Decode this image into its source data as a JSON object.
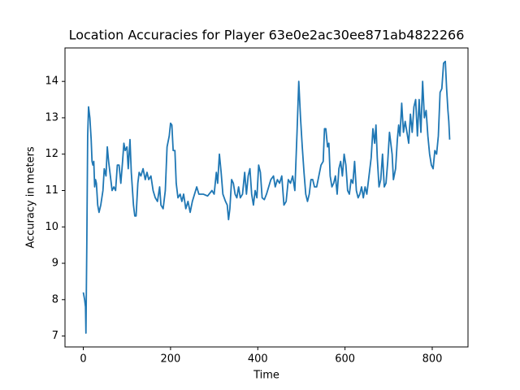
{
  "chart_data": {
    "type": "line",
    "title": "Location Accuracies for Player 63e0e2ac30ee871ab4822266",
    "x_label": "Time",
    "y_label": "Accuracy in meters",
    "xlim": [
      -42,
      882
    ],
    "ylim": [
      6.7,
      14.92
    ],
    "xticks": [
      0,
      200,
      400,
      600,
      800
    ],
    "yticks": [
      7,
      8,
      9,
      10,
      11,
      12,
      13,
      14
    ],
    "grid": false,
    "series": [
      {
        "color": "#1f77b4",
        "x": [
          0,
          3,
          5,
          6,
          8,
          10,
          12,
          15,
          18,
          20,
          22,
          24,
          26,
          28,
          30,
          33,
          36,
          40,
          45,
          48,
          52,
          55,
          58,
          62,
          66,
          70,
          74,
          78,
          82,
          86,
          90,
          93,
          96,
          100,
          103,
          107,
          110,
          115,
          118,
          121,
          125,
          128,
          132,
          137,
          142,
          146,
          150,
          155,
          160,
          165,
          170,
          175,
          178,
          183,
          188,
          192,
          197,
          200,
          203,
          206,
          210,
          213,
          217,
          222,
          226,
          230,
          235,
          240,
          245,
          250,
          255,
          260,
          265,
          275,
          285,
          295,
          300,
          305,
          308,
          312,
          316,
          320,
          326,
          330,
          333,
          336,
          340,
          344,
          348,
          352,
          356,
          360,
          365,
          370,
          374,
          378,
          382,
          386,
          390,
          394,
          398,
          402,
          406,
          410,
          415,
          420,
          425,
          430,
          436,
          440,
          445,
          450,
          455,
          460,
          465,
          470,
          475,
          480,
          485,
          490,
          494,
          498,
          502,
          506,
          510,
          514,
          518,
          522,
          526,
          530,
          535,
          540,
          545,
          550,
          553,
          556,
          560,
          563,
          566,
          570,
          574,
          578,
          582,
          586,
          590,
          594,
          598,
          602,
          606,
          610,
          614,
          618,
          622,
          626,
          630,
          634,
          638,
          642,
          646,
          650,
          655,
          660,
          664,
          668,
          671,
          674,
          678,
          682,
          686,
          690,
          694,
          698,
          702,
          705,
          708,
          711,
          716,
          720,
          723,
          726,
          730,
          734,
          738,
          742,
          746,
          750,
          754,
          758,
          762,
          766,
          770,
          774,
          778,
          782,
          786,
          790,
          794,
          798,
          802,
          806,
          810,
          814,
          818,
          822,
          826,
          830,
          833,
          836,
          838,
          840
        ],
        "values": [
          8.2,
          8.0,
          7.8,
          7.08,
          9.5,
          12.5,
          13.3,
          13.0,
          12.4,
          11.8,
          11.7,
          11.8,
          11.1,
          11.3,
          11.2,
          10.6,
          10.4,
          10.6,
          11.0,
          11.6,
          11.4,
          12.2,
          11.8,
          11.4,
          11.0,
          11.1,
          11.0,
          11.7,
          11.7,
          11.2,
          11.8,
          12.3,
          12.1,
          12.2,
          11.6,
          12.4,
          11.5,
          10.6,
          10.3,
          10.3,
          11.2,
          11.5,
          11.4,
          11.6,
          11.3,
          11.5,
          11.3,
          11.4,
          11.0,
          10.8,
          10.7,
          11.1,
          10.6,
          10.5,
          11.0,
          12.2,
          12.5,
          12.85,
          12.8,
          12.1,
          12.1,
          11.2,
          10.8,
          10.9,
          10.7,
          10.9,
          10.5,
          10.7,
          10.4,
          10.7,
          10.9,
          11.1,
          10.9,
          10.9,
          10.85,
          11.0,
          10.9,
          11.5,
          11.2,
          12.0,
          11.5,
          10.9,
          10.7,
          10.6,
          10.2,
          10.5,
          11.3,
          11.2,
          10.9,
          10.8,
          11.1,
          10.8,
          10.9,
          11.5,
          10.9,
          11.4,
          11.6,
          10.9,
          10.6,
          11.0,
          10.8,
          11.7,
          11.5,
          10.8,
          10.75,
          10.9,
          11.1,
          11.3,
          11.4,
          11.1,
          11.3,
          11.2,
          11.4,
          10.6,
          10.7,
          11.3,
          11.2,
          11.4,
          11.0,
          12.6,
          14.0,
          13.0,
          12.2,
          11.5,
          10.9,
          10.7,
          10.9,
          11.3,
          11.3,
          11.1,
          11.1,
          11.4,
          11.7,
          11.8,
          12.7,
          12.7,
          12.2,
          12.3,
          11.4,
          11.1,
          11.2,
          11.4,
          10.9,
          11.6,
          11.8,
          11.4,
          12.0,
          11.7,
          11.0,
          10.9,
          11.3,
          11.2,
          11.8,
          11.0,
          10.8,
          10.9,
          11.1,
          10.8,
          11.1,
          10.9,
          11.4,
          11.9,
          12.7,
          12.3,
          12.8,
          11.9,
          11.1,
          11.3,
          12.0,
          11.1,
          11.2,
          11.8,
          12.6,
          12.3,
          12.0,
          11.3,
          11.6,
          12.4,
          12.8,
          12.5,
          13.4,
          12.6,
          12.9,
          12.6,
          12.3,
          13.1,
          12.6,
          13.3,
          13.5,
          12.5,
          13.5,
          12.6,
          14.0,
          13.0,
          13.2,
          12.5,
          12.0,
          11.7,
          11.6,
          12.1,
          12.0,
          12.5,
          13.7,
          13.8,
          14.5,
          14.55,
          13.8,
          13.2,
          12.9,
          12.4
        ]
      }
    ]
  }
}
